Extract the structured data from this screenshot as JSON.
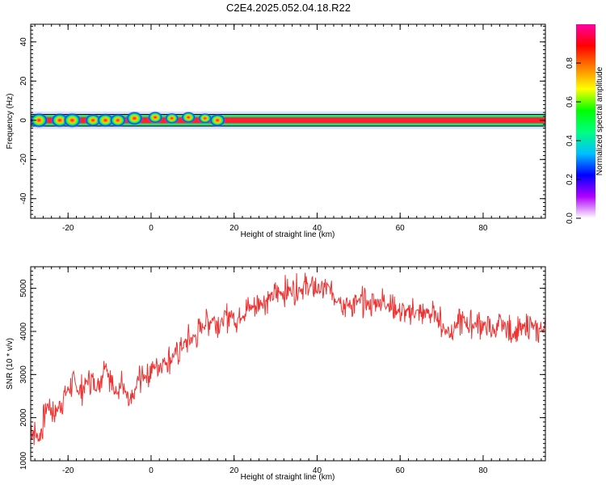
{
  "title": "C2E4.2025.052.04.18.R22",
  "chart_data": [
    {
      "type": "heatmap",
      "xlabel": "Height of straight line (km)",
      "ylabel": "Frequency (Hz)",
      "xlim": [
        -29,
        95
      ],
      "ylim": [
        -50,
        49
      ],
      "xticks": [
        -20,
        0,
        20,
        40,
        60,
        80
      ],
      "yticks": [
        -40,
        -20,
        0,
        20,
        40
      ],
      "colorbar": {
        "label": "Normalized spectral amplitude",
        "range": [
          0,
          1
        ],
        "ticks": [
          "0.0",
          "0.2",
          "0.4",
          "0.6",
          "0.8"
        ],
        "colors": [
          "#ffffff",
          "#b000ff",
          "#0000ff",
          "#00c0ff",
          "#00ff80",
          "#00ff00",
          "#ffff00",
          "#ff8000",
          "#ff0000",
          "#ff00a0"
        ]
      },
      "band_center_hz": 0,
      "band_halfwidth_hz": 1.5,
      "band_color": "#ff2030",
      "band_edge_color": "#00e060",
      "hotspots": [
        {
          "x": -27,
          "y": 0,
          "amp": 0.9
        },
        {
          "x": -22,
          "y": 0,
          "amp": 0.85
        },
        {
          "x": -19,
          "y": 0,
          "amp": 0.9
        },
        {
          "x": -14,
          "y": 0,
          "amp": 0.7
        },
        {
          "x": -11,
          "y": 0,
          "amp": 0.8
        },
        {
          "x": -8,
          "y": 0,
          "amp": 0.75
        },
        {
          "x": -4,
          "y": 1,
          "amp": 0.8
        },
        {
          "x": 1,
          "y": 1.5,
          "amp": 0.6
        },
        {
          "x": 5,
          "y": 1,
          "amp": 0.5
        },
        {
          "x": 9,
          "y": 1.5,
          "amp": 0.55
        },
        {
          "x": 13,
          "y": 1,
          "amp": 0.45
        },
        {
          "x": 16,
          "y": 0,
          "amp": 0.7
        }
      ]
    },
    {
      "type": "line",
      "xlabel": "Height of straight line (km)",
      "ylabel": "SNR (10 * v/v)",
      "xlim": [
        -29,
        95
      ],
      "ylim": [
        1000,
        5500
      ],
      "xticks": [
        -20,
        0,
        20,
        40,
        60,
        80
      ],
      "yticks": [
        1000,
        2000,
        3000,
        4000,
        5000
      ],
      "color": "#ee3333",
      "x": [
        -29,
        -27,
        -25,
        -23,
        -21,
        -19,
        -17,
        -15,
        -13,
        -11,
        -9,
        -7,
        -5,
        -3,
        -1,
        1,
        3,
        5,
        7,
        9,
        11,
        13,
        15,
        17,
        19,
        21,
        23,
        25,
        27,
        29,
        31,
        33,
        35,
        37,
        39,
        41,
        43,
        45,
        47,
        49,
        51,
        53,
        55,
        57,
        59,
        61,
        63,
        65,
        67,
        69,
        71,
        73,
        75,
        77,
        79,
        81,
        83,
        85,
        87,
        89,
        91,
        93,
        95
      ],
      "y": [
        1800,
        1500,
        2300,
        2100,
        2500,
        2800,
        2600,
        2900,
        2700,
        3300,
        2600,
        2800,
        2200,
        2900,
        3000,
        3200,
        3300,
        3400,
        3600,
        3800,
        3900,
        4200,
        4300,
        4200,
        4400,
        4300,
        4500,
        4600,
        4700,
        4800,
        4900,
        4950,
        5000,
        5000,
        5050,
        4950,
        5000,
        4800,
        4600,
        4650,
        4700,
        4600,
        4700,
        4650,
        4500,
        4400,
        4500,
        4400,
        4450,
        4350,
        4000,
        4100,
        4250,
        4150,
        4200,
        4100,
        4000,
        4150,
        3950,
        4000,
        4200,
        4000,
        4100
      ]
    }
  ]
}
